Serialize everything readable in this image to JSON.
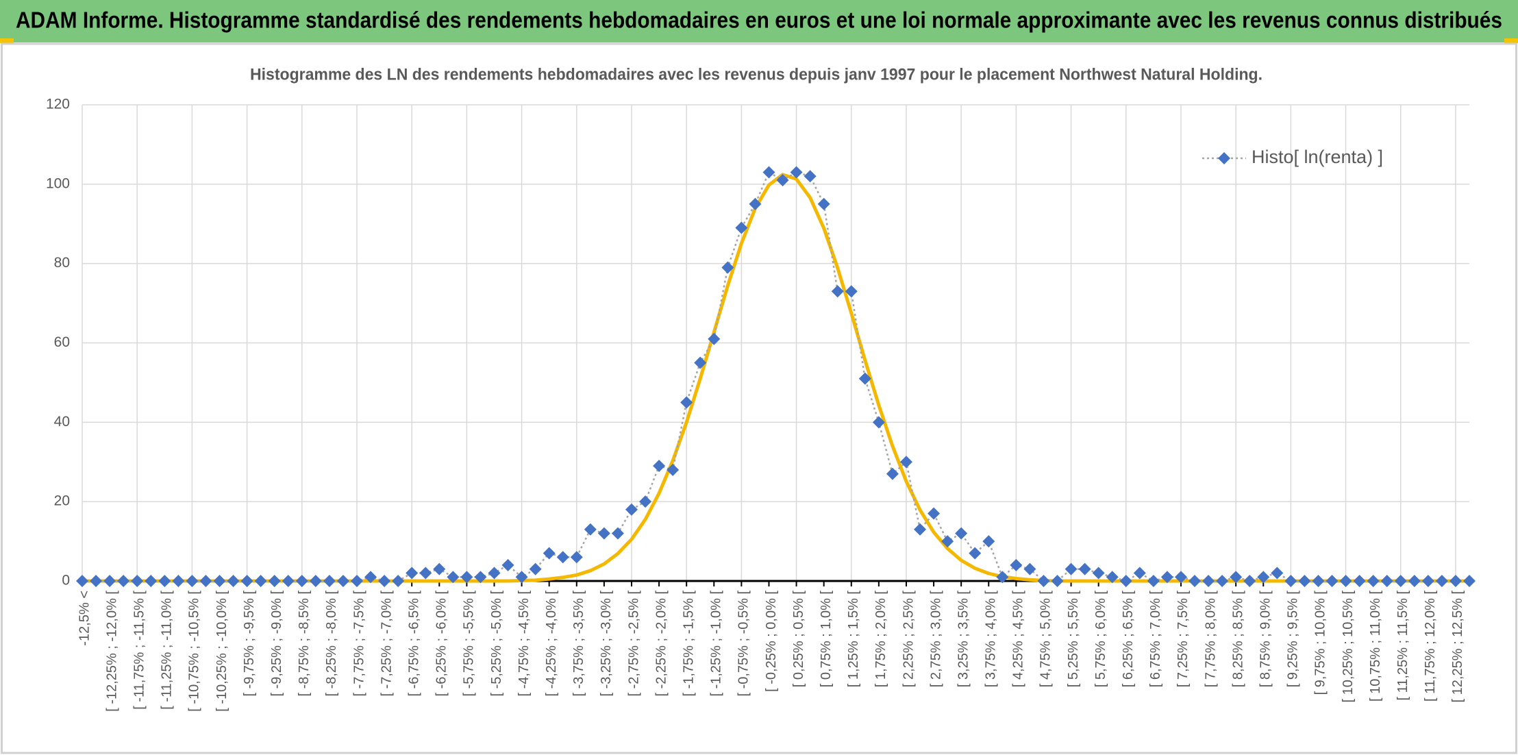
{
  "header": {
    "title": "ADAM Informe. Histogramme standardisé des rendements hebdomadaires en euros et une loi normale approximante avec les revenus connus distribués"
  },
  "chart_data": {
    "type": "line",
    "title": "Histogramme des LN des rendements hebdomadaires avec les revenus depuis janv 1997 pour le placement Northwest Natural Holding.",
    "categories": [
      "-12,5% <",
      null,
      "[ -12,25% ; -12,0% [",
      null,
      "[ -11,75% ; -11,5% [",
      null,
      "[ -11,25% ; -11,0% [",
      null,
      "[ -10,75% ; -10,5% [",
      null,
      "[ -10,25% ; -10,0% [",
      null,
      "[ -9,75% ; -9,5% [",
      null,
      "[ -9,25% ; -9,0% [",
      null,
      "[ -8,75% ; -8,5% [",
      null,
      "[ -8,25% ; -8,0% [",
      null,
      "[ -7,75% ; -7,5% [",
      null,
      "[ -7,25% ; -7,0% [",
      null,
      "[ -6,75% ; -6,5% [",
      null,
      "[ -6,25% ; -6,0% [",
      null,
      "[ -5,75% ; -5,5% [",
      null,
      "[ -5,25% ; -5,0% [",
      null,
      "[ -4,75% ; -4,5% [",
      null,
      "[ -4,25% ; -4,0% [",
      null,
      "[ -3,75% ; -3,5% [",
      null,
      "[ -3,25% ; -3,0% [",
      null,
      "[ -2,75% ; -2,5% [",
      null,
      "[ -2,25% ; -2,0% [",
      null,
      "[ -1,75% ; -1,5% [",
      null,
      "[ -1,25% ; -1,0% [",
      null,
      "[ -0,75% ; -0,5% [",
      null,
      "[ -0,25% ; 0,0% [",
      null,
      "[ 0,25% ; 0,5% [",
      null,
      "[ 0,75% ; 1,0% [",
      null,
      "[ 1,25% ; 1,5% [",
      null,
      "[ 1,75% ; 2,0% [",
      null,
      "[ 2,25% ; 2,5% [",
      null,
      "[ 2,75% ; 3,0% [",
      null,
      "[ 3,25% ; 3,5% [",
      null,
      "[ 3,75% ; 4,0% [",
      null,
      "[ 4,25% ; 4,5% [",
      null,
      "[ 4,75% ; 5,0% [",
      null,
      "[ 5,25% ; 5,5% [",
      null,
      "[ 5,75% ; 6,0% [",
      null,
      "[ 6,25% ; 6,5% [",
      null,
      "[ 6,75% ; 7,0% [",
      null,
      "[ 7,25% ; 7,5% [",
      null,
      "[ 7,75% ; 8,0% [",
      null,
      "[ 8,25% ; 8,5% [",
      null,
      "[ 8,75% ; 9,0% [",
      null,
      "[ 9,25% ; 9,5% [",
      null,
      "[ 9,75% ; 10,0% [",
      null,
      "[ 10,25% ; 10,5% [",
      null,
      "[ 10,75% ; 11,0% [",
      null,
      "[ 11,25% ; 11,5% [",
      null,
      "[ 11,75% ; 12,0% [",
      null,
      "[ 12,25% ; 12,5% [",
      null
    ],
    "series": [
      {
        "name": "Histo[ ln(renta) ]",
        "color": "#4472c4",
        "line_color": "#a5a5a5",
        "line_style": "dotted",
        "marker": "diamond",
        "values": [
          0,
          0,
          0,
          0,
          0,
          0,
          0,
          0,
          0,
          0,
          0,
          0,
          0,
          0,
          0,
          0,
          0,
          0,
          0,
          0,
          0,
          1,
          0,
          0,
          2,
          2,
          3,
          1,
          1,
          1,
          2,
          4,
          1,
          3,
          7,
          6,
          6,
          13,
          12,
          12,
          18,
          20,
          29,
          28,
          45,
          55,
          61,
          79,
          89,
          95,
          103,
          101,
          103,
          102,
          95,
          73,
          73,
          51,
          40,
          27,
          30,
          13,
          17,
          10,
          12,
          7,
          10,
          1,
          4,
          3,
          0,
          0,
          3,
          3,
          2,
          1,
          0,
          2,
          0,
          1,
          1,
          0,
          0,
          0,
          1,
          0,
          1,
          2,
          0,
          0,
          0,
          0,
          0,
          0,
          0,
          0,
          0,
          0,
          0,
          0,
          0,
          0
        ]
      },
      {
        "color": "#f5b800",
        "line_color": "#f5b800",
        "line_style": "solid",
        "marker": "none",
        "values": [
          0,
          0,
          0,
          0,
          0,
          0,
          0,
          0,
          0,
          0,
          0,
          0,
          0,
          0,
          0,
          0,
          0,
          0,
          0,
          0,
          0,
          0,
          0,
          0,
          0,
          0,
          0,
          0,
          0,
          0,
          0,
          0,
          0.1,
          0.2,
          0.5,
          0.9,
          1.5,
          2.6,
          4.3,
          6.9,
          10.5,
          15.5,
          22.1,
          30.3,
          40.0,
          51.0,
          62.7,
          74.4,
          85.1,
          93.9,
          99.8,
          102.4,
          101.3,
          96.6,
          88.9,
          78.9,
          67.5,
          55.6,
          44.3,
          34.0,
          25.1,
          17.9,
          12.3,
          8.2,
          5.2,
          3.2,
          1.9,
          1.1,
          0.6,
          0.3,
          0.1,
          0,
          0,
          0,
          0,
          0,
          0,
          0,
          0,
          0,
          0,
          0,
          0,
          0,
          0,
          0,
          0,
          0,
          0,
          0,
          0,
          0,
          0,
          0,
          0,
          0,
          0,
          0,
          0,
          0,
          0,
          0
        ]
      }
    ],
    "ylim": [
      0,
      120
    ],
    "yticks": [
      0,
      20,
      40,
      60,
      80,
      100,
      120
    ],
    "grid": true,
    "legend": "upper right"
  }
}
